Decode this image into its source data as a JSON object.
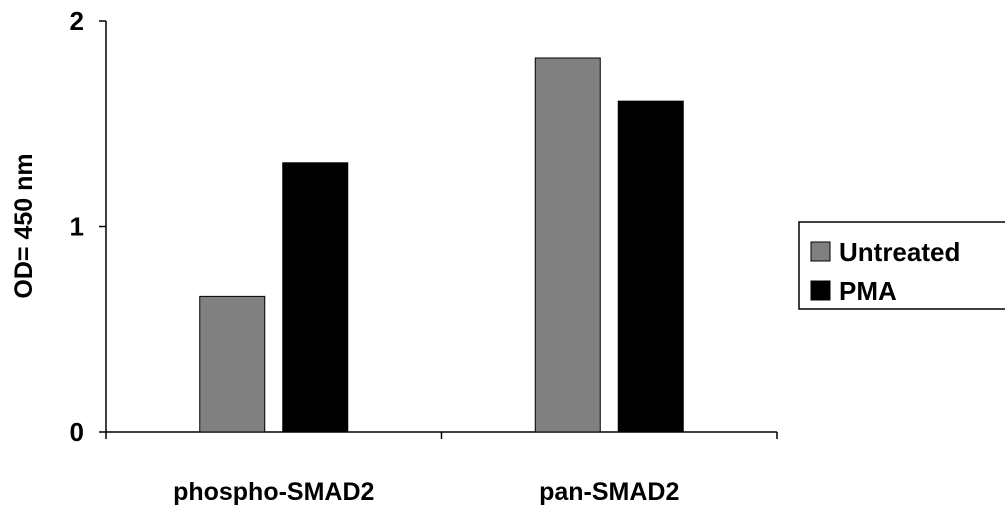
{
  "chart_data": {
    "type": "bar",
    "title": "",
    "xlabel": "",
    "ylabel": "OD= 450 nm",
    "ylim": [
      0,
      2
    ],
    "yticks": [
      "0",
      "1",
      "2"
    ],
    "categories": [
      "phospho-SMAD2",
      "pan-SMAD2"
    ],
    "series": [
      {
        "name": "Untreated",
        "values": [
          0.66,
          1.82
        ],
        "color": "#808080"
      },
      {
        "name": "PMA",
        "values": [
          1.31,
          1.61
        ],
        "color": "#000000"
      }
    ],
    "grid": false,
    "legend_position": "right"
  }
}
